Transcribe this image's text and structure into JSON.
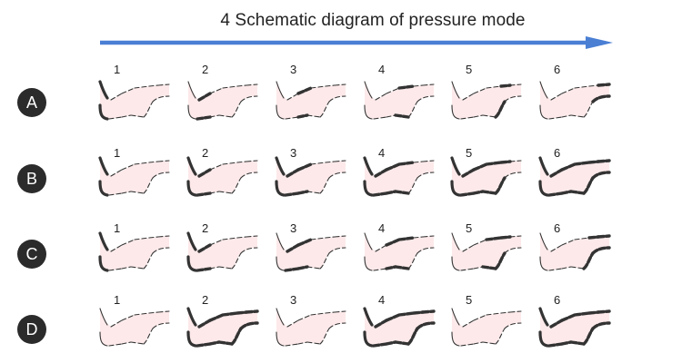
{
  "title": "4 Schematic diagram of pressure mode",
  "colors": {
    "arrow": "#4a7fd4",
    "leg_fill": "#fde9ea",
    "badge": "#2b2b2b",
    "outline": "#333333"
  },
  "stage_labels": [
    "1",
    "2",
    "3",
    "4",
    "5",
    "6"
  ],
  "rows": [
    {
      "label": "A",
      "active": [
        [
          1
        ],
        [
          2
        ],
        [
          3
        ],
        [
          4
        ],
        [
          5
        ],
        [
          6
        ]
      ]
    },
    {
      "label": "B",
      "active": [
        [
          1
        ],
        [
          1,
          2
        ],
        [
          1,
          2,
          3
        ],
        [
          1,
          2,
          3,
          4
        ],
        [
          1,
          2,
          3,
          4,
          5
        ],
        [
          1,
          2,
          3,
          4,
          5,
          6
        ]
      ]
    },
    {
      "label": "C",
      "active": [
        [
          1
        ],
        [
          1,
          2
        ],
        [
          2,
          3
        ],
        [
          3,
          4
        ],
        [
          4,
          5
        ],
        [
          5,
          6
        ]
      ]
    },
    {
      "label": "D",
      "active": [
        [],
        [
          1,
          2,
          3,
          4,
          5,
          6
        ],
        [],
        [
          1,
          2,
          3,
          4,
          5,
          6
        ],
        [],
        [
          1,
          2,
          3,
          4,
          5,
          6
        ]
      ]
    }
  ]
}
